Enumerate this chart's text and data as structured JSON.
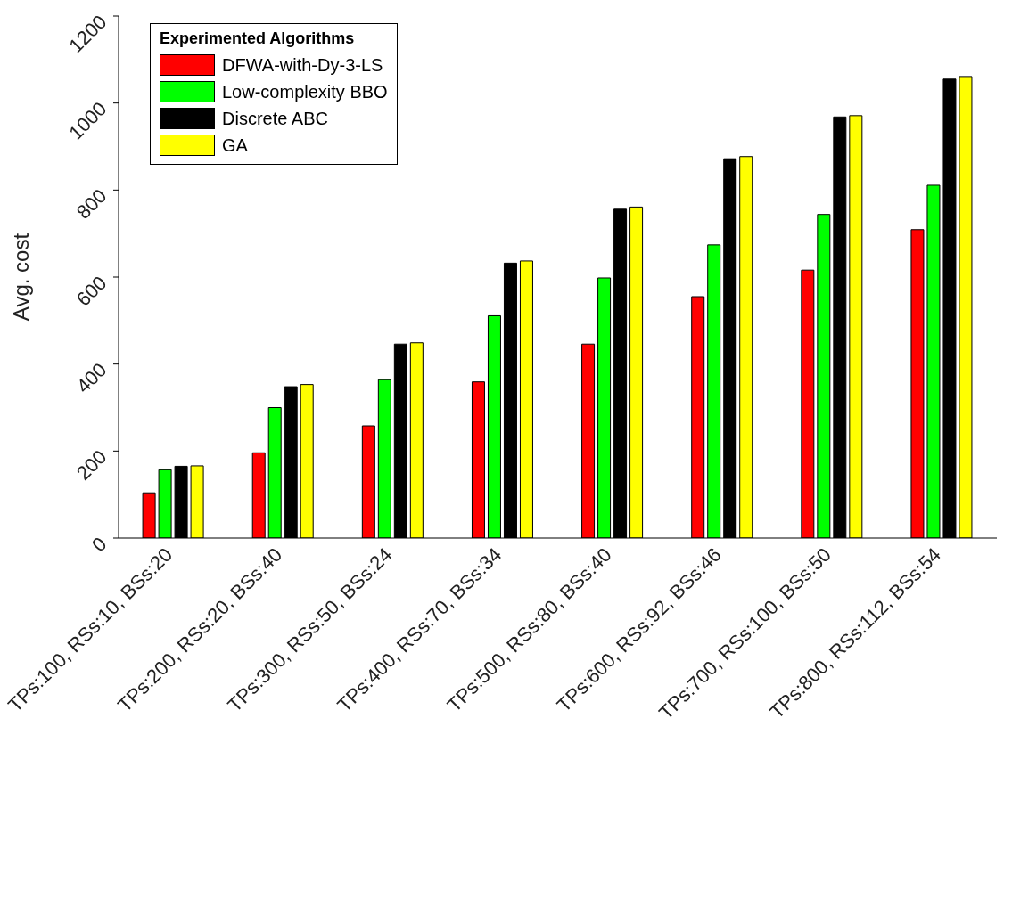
{
  "chart_data": {
    "type": "bar",
    "ylabel": "Avg. cost",
    "legend_title": "Experimented Algorithms",
    "categories": [
      "TPs:100, RSs:10, BSs:20",
      "TPs:200, RSs:20, BSs:40",
      "TPs:300, RSs:50, BSs:24",
      "TPs:400, RSs:70, BSs:34",
      "TPs:500, RSs:80, BSs:40",
      "TPs:600, RSs:92, BSs:46",
      "TPs:700, RSs:100, BSs:50",
      "TPs:800, RSs:112, BSs:54"
    ],
    "series": [
      {
        "name": "DFWA-with-Dy-3-LS",
        "color": "#ff0000",
        "values": [
          104,
          196,
          258,
          359,
          446,
          555,
          616,
          709
        ]
      },
      {
        "name": "Low-complexity BBO",
        "color": "#00ff00",
        "values": [
          157,
          300,
          364,
          511,
          598,
          674,
          744,
          811
        ]
      },
      {
        "name": "Discrete ABC",
        "color": "#000000",
        "values": [
          165,
          348,
          446,
          632,
          756,
          872,
          968,
          1055
        ]
      },
      {
        "name": "GA",
        "color": "#ffff00",
        "values": [
          166,
          353,
          449,
          637,
          761,
          877,
          971,
          1061
        ]
      }
    ],
    "ylim": [
      0,
      1200
    ],
    "yticks": [
      0,
      200,
      400,
      600,
      800,
      1000,
      1200
    ],
    "legend": "top left"
  }
}
